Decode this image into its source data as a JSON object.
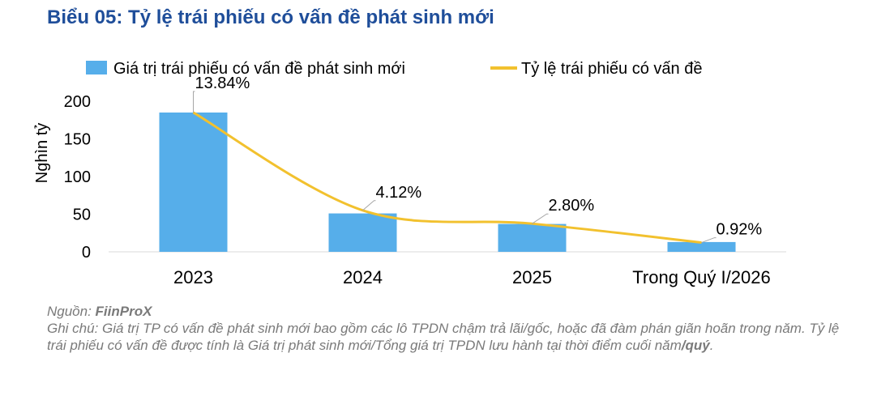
{
  "title": "Biểu 05: Tỷ lệ trái phiếu có vấn đề phát sinh mới",
  "chart_data": {
    "type": "bar",
    "categories": [
      "2023",
      "2024",
      "2025",
      "Trong Quý I/2026"
    ],
    "series": [
      {
        "name": "Giá trị trái phiếu có vấn đề phát sinh mới",
        "kind": "bar",
        "axis": "left",
        "values": [
          185,
          51,
          37,
          13
        ],
        "color": "#56aeea"
      },
      {
        "name": "Tỷ lệ trái phiếu có vấn đề",
        "kind": "line",
        "axis": "right-hidden",
        "values": [
          13.84,
          4.12,
          2.8,
          0.92
        ],
        "labels": [
          "13.84%",
          "4.12%",
          "2.80%",
          "0.92%"
        ],
        "color": "#f2c12e"
      }
    ],
    "ylabel": "Nghìn tỷ",
    "ylim": [
      0,
      200
    ],
    "yticks": [
      "0",
      "50",
      "100",
      "150",
      "200"
    ],
    "legend": "top",
    "grid": false
  },
  "notes": {
    "source_prefix": "Nguồn: ",
    "source_name": "FiinProX",
    "note_main": "Ghi chú: Giá trị TP có vấn đề phát sinh mới bao gồm các lô TPDN chậm trả lãi/gốc, hoặc đã đàm phán giãn hoãn trong năm. Tỷ lệ trái phiếu có vấn đề được tính là Giá trị phát sinh mới/Tổng giá trị TPDN lưu hành tại thời điểm cuối năm",
    "note_bold": "/quý",
    "note_end": "."
  }
}
